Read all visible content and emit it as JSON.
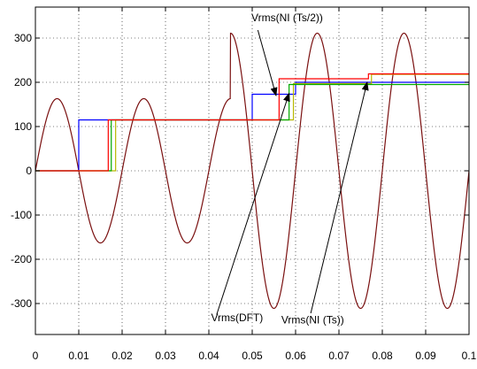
{
  "chart_data": {
    "type": "line",
    "title": "",
    "xlabel": "",
    "ylabel": "",
    "xlim": [
      0,
      0.1
    ],
    "ylim": [
      -370,
      370
    ],
    "grid": true,
    "x_ticks": [
      0,
      0.01,
      0.02,
      0.03,
      0.04,
      0.05,
      0.06,
      0.07,
      0.08,
      0.09,
      0.1
    ],
    "x_tick_labels": [
      "0",
      "0.01",
      "0.02",
      "0.03",
      "0.04",
      "0.05",
      "0.06",
      "0.07",
      "0.08",
      "0.09",
      "0.1"
    ],
    "y_ticks": [
      -300,
      -200,
      -100,
      0,
      100,
      200,
      300
    ],
    "y_tick_labels": [
      "-300",
      "-200",
      "-100",
      "0",
      "100",
      "200",
      "300"
    ],
    "waveform": {
      "color": "#7a1010",
      "frequency_hz": 50,
      "segments": [
        {
          "x_start": 0.0,
          "x_end": 0.045,
          "amplitude": 163
        },
        {
          "x_start": 0.045,
          "x_end": 0.1,
          "amplitude": 311
        }
      ]
    },
    "series": [
      {
        "color": "#0000ff",
        "x": [
          0,
          0.01,
          0.01,
          0.05,
          0.05,
          0.06,
          0.06,
          0.1
        ],
        "values": [
          0,
          0,
          115,
          115,
          173,
          173,
          200,
          200
        ]
      },
      {
        "color": "#b8b800",
        "x": [
          0,
          0.0185,
          0.0185,
          0.0595,
          0.0595,
          0.0775,
          0.0775,
          0.1
        ],
        "values": [
          0,
          0,
          115,
          115,
          197,
          197,
          218,
          218
        ]
      },
      {
        "color": "#00aa00",
        "x": [
          0,
          0.0175,
          0.0175,
          0.0585,
          0.0585,
          0.078,
          0.078,
          0.1
        ],
        "values": [
          0,
          0,
          115,
          115,
          195,
          195,
          195,
          195
        ]
      },
      {
        "color": "#ff0000",
        "x": [
          0,
          0.0168,
          0.0168,
          0.0562,
          0.0562,
          0.0768,
          0.0768,
          0.1
        ],
        "values": [
          0,
          0,
          115,
          115,
          208,
          208,
          219,
          219
        ]
      }
    ],
    "annotations": [
      {
        "text": "Vrms(NI (Ts/2))",
        "text_x": 0.0498,
        "text_y": 338,
        "arrow_from": [
          0.0513,
          318
        ],
        "arrow_to": [
          0.0555,
          170
        ]
      },
      {
        "text": "Vrms(DFT)",
        "text_x": 0.0405,
        "text_y": -340,
        "arrow_from": [
          0.0418,
          -325
        ],
        "arrow_to": [
          0.0585,
          175
        ]
      },
      {
        "text": "Vrms(NI (Ts))",
        "text_x": 0.0567,
        "text_y": -345,
        "arrow_from": [
          0.0635,
          -322
        ],
        "arrow_to": [
          0.0765,
          200
        ]
      }
    ]
  }
}
